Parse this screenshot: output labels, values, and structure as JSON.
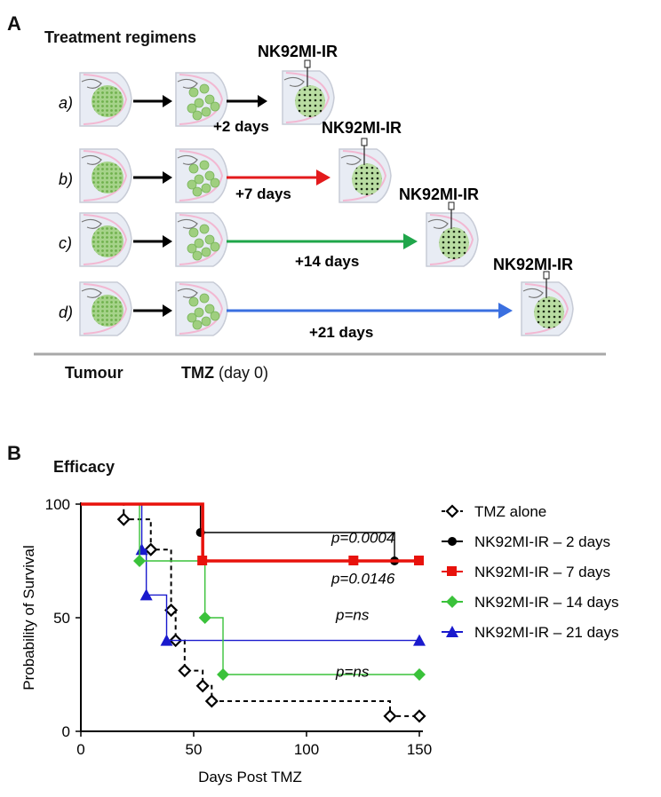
{
  "panel_a": {
    "letter": "A",
    "title": "Treatment regimens",
    "rows": [
      {
        "label": "a)",
        "days": "+2 days",
        "nk": "NK92MI-IR",
        "arrow_color": "#000000"
      },
      {
        "label": "b)",
        "days": "+7 days",
        "nk": "NK92MI-IR",
        "arrow_color": "#e31a1c"
      },
      {
        "label": "c)",
        "days": "+14 days",
        "nk": "NK92MI-IR",
        "arrow_color": "#1fa64a"
      },
      {
        "label": "d)",
        "days": "+21 days",
        "nk": "NK92MI-IR",
        "arrow_color": "#3a6fe0"
      }
    ],
    "footer": {
      "tumour": "Tumour",
      "tmz": "TMZ",
      "tmz_suffix": " (day 0)"
    },
    "icons": [
      "brain-section-tumour-icon",
      "brain-section-tmz-icon",
      "brain-section-nk-injection-icon",
      "syringe-icon"
    ]
  },
  "panel_b": {
    "letter": "B",
    "title": "Efficacy"
  },
  "chart_data": {
    "type": "line",
    "step": true,
    "xlabel": "Days Post TMZ",
    "ylabel": "Probability of Survival",
    "xlim": [
      0,
      150
    ],
    "ylim": [
      0,
      100
    ],
    "xticks": [
      0,
      50,
      100,
      150
    ],
    "yticks": [
      0,
      50,
      100
    ],
    "grid": false,
    "legend_position": "right",
    "series": [
      {
        "name": "TMZ alone",
        "color": "#000000",
        "marker": "diamond-open",
        "dashed": true,
        "x": [
          0,
          19,
          27,
          31,
          39,
          40,
          42,
          46,
          54,
          58,
          137,
          150
        ],
        "y": [
          100,
          93.3,
          93.3,
          80,
          80,
          53.3,
          40,
          26.7,
          20,
          13.3,
          6.7,
          6.7
        ],
        "markers_x": [
          19,
          31,
          40,
          42,
          46,
          54,
          58,
          137,
          150
        ],
        "markers_y": [
          93.3,
          80,
          53.3,
          40,
          26.7,
          20,
          13.3,
          6.7,
          6.7
        ]
      },
      {
        "name": "NK92MI-IR – 2 days",
        "color": "#000000",
        "marker": "circle",
        "x": [
          0,
          53,
          139,
          150
        ],
        "y": [
          100,
          87.5,
          75,
          75
        ],
        "markers_x": [
          53,
          139,
          150
        ],
        "markers_y": [
          87.5,
          75,
          75
        ]
      },
      {
        "name": "NK92MI-IR – 7 days",
        "color": "#e8120c",
        "marker": "square",
        "x": [
          0,
          54,
          121,
          150
        ],
        "y": [
          100,
          75,
          75,
          75
        ],
        "markers_x": [
          54,
          121,
          150
        ],
        "markers_y": [
          75,
          75,
          75
        ]
      },
      {
        "name": "NK92MI-IR – 14 days",
        "color": "#3ac23a",
        "marker": "diamond",
        "x": [
          0,
          26,
          55,
          63,
          150
        ],
        "y": [
          100,
          75,
          50,
          25,
          25
        ],
        "markers_x": [
          26,
          55,
          63,
          150
        ],
        "markers_y": [
          75,
          50,
          25,
          25
        ]
      },
      {
        "name": "NK92MI-IR – 21 days",
        "color": "#1a1acd",
        "marker": "triangle",
        "x": [
          0,
          27,
          29,
          38,
          150
        ],
        "y": [
          100,
          80,
          60,
          40,
          40
        ],
        "markers_x": [
          27,
          29,
          38,
          150
        ],
        "markers_y": [
          80,
          60,
          40,
          40
        ]
      }
    ],
    "annotations": [
      {
        "text": "p=0.0004",
        "x": 111,
        "y": 83
      },
      {
        "text": "p=0.0146",
        "x": 111,
        "y": 65
      },
      {
        "text": "p=ns",
        "x": 113,
        "y": 49
      },
      {
        "text": "p=ns",
        "x": 113,
        "y": 24
      }
    ]
  }
}
